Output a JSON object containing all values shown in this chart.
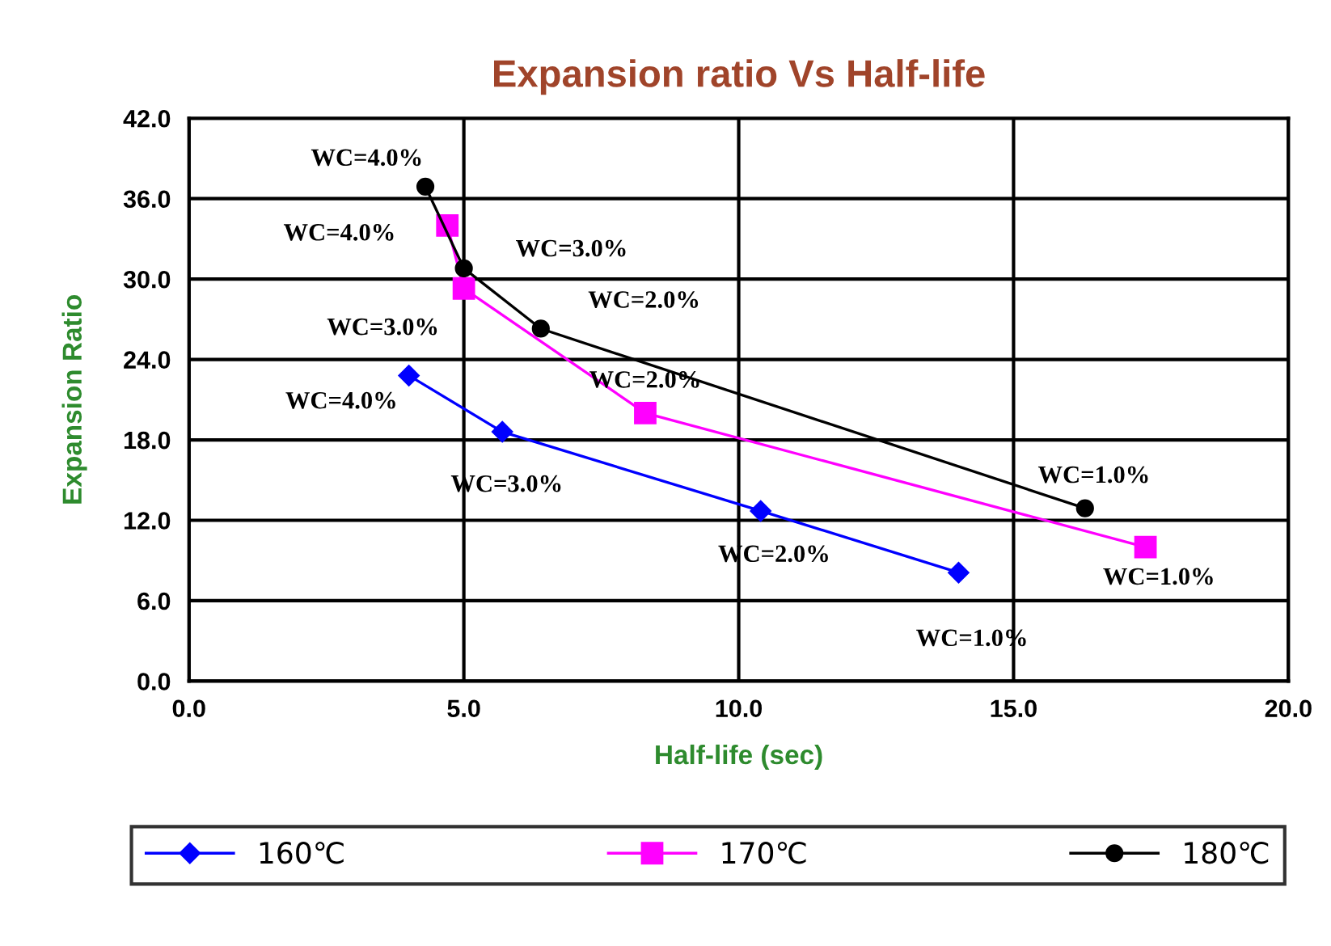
{
  "chart_data": {
    "type": "line",
    "title": "Expansion ratio Vs Half-life",
    "xlabel": "Half-life (sec)",
    "ylabel": "Expansion Ratio",
    "xlim": [
      0,
      20
    ],
    "xticks": [
      {
        "value": 0,
        "label": "0.0"
      },
      {
        "value": 5,
        "label": "5.0"
      },
      {
        "value": 10,
        "label": "10.0"
      },
      {
        "value": 15,
        "label": "15.0"
      },
      {
        "value": 20,
        "label": "20.0"
      }
    ],
    "ylim": [
      0,
      42
    ],
    "yticks": [
      {
        "value": 0,
        "label": "0.0"
      },
      {
        "value": 6,
        "label": "6.0"
      },
      {
        "value": 12,
        "label": "12.0"
      },
      {
        "value": 18,
        "label": "18.0"
      },
      {
        "value": 24,
        "label": "24.0"
      },
      {
        "value": 30,
        "label": "30.0"
      },
      {
        "value": 36,
        "label": "36.0"
      },
      {
        "value": 42,
        "label": "42.0"
      }
    ],
    "grid": true,
    "legend": "bottom",
    "series": [
      {
        "name": "160℃",
        "color": "#0000ff",
        "marker": "diamond",
        "x": [
          4.0,
          5.7,
          10.4,
          14.0
        ],
        "values": [
          22.8,
          18.6,
          12.7,
          8.1
        ]
      },
      {
        "name": "170℃",
        "color": "#ff00ff",
        "marker": "square",
        "x": [
          4.7,
          5.0,
          8.3,
          17.4
        ],
        "values": [
          34.0,
          29.3,
          20.0,
          10.0
        ]
      },
      {
        "name": "180℃",
        "color": "#000000",
        "marker": "circle",
        "x": [
          4.3,
          5.0,
          6.4,
          16.3
        ],
        "values": [
          36.9,
          30.8,
          26.3,
          12.9
        ]
      }
    ],
    "annotations": [
      {
        "text": "WC=4.0%",
        "x": 4.0,
        "y": 22.8
      },
      {
        "text": "WC=3.0%",
        "x": 5.7,
        "y": 18.6
      },
      {
        "text": "WC=2.0%",
        "x": 10.4,
        "y": 12.7
      },
      {
        "text": "WC=1.0%",
        "x": 14.0,
        "y": 8.1
      },
      {
        "text": "WC=4.0%",
        "x": 4.7,
        "y": 34.0
      },
      {
        "text": "WC=3.0%",
        "x": 5.0,
        "y": 29.3
      },
      {
        "text": "WC=2.0%",
        "x": 8.3,
        "y": 20.0
      },
      {
        "text": "WC=1.0%",
        "x": 17.4,
        "y": 10.0
      },
      {
        "text": "WC=4.0%",
        "x": 4.3,
        "y": 36.9
      },
      {
        "text": "WC=3.0%",
        "x": 5.0,
        "y": 30.8
      },
      {
        "text": "WC=2.0%",
        "x": 6.4,
        "y": 26.3
      },
      {
        "text": "WC=1.0%",
        "x": 16.3,
        "y": 12.9
      }
    ]
  }
}
